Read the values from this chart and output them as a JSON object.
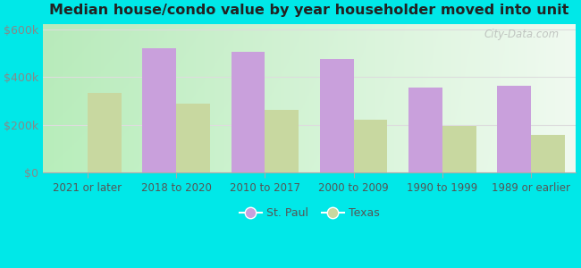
{
  "title": "Median house/condo value by year householder moved into unit",
  "categories": [
    "2021 or later",
    "2018 to 2020",
    "2010 to 2017",
    "2000 to 2009",
    "1990 to 1999",
    "1989 or earlier"
  ],
  "st_paul_values": [
    0,
    520000,
    505000,
    475000,
    355000,
    365000
  ],
  "texas_values": [
    335000,
    287000,
    263000,
    222000,
    197000,
    158000
  ],
  "st_paul_color": "#c9a0dc",
  "texas_color": "#c8d8a0",
  "outer_bg": "#00e8e8",
  "plot_bg_left": "#b8eebb",
  "plot_bg_right": "#f0faf0",
  "ylim": [
    0,
    620000
  ],
  "yticks": [
    0,
    200000,
    400000,
    600000
  ],
  "ytick_labels": [
    "$0",
    "$200k",
    "$400k",
    "$600k"
  ],
  "tick_color": "#888888",
  "grid_color": "#dddddd",
  "bar_width": 0.38,
  "legend_labels": [
    "St. Paul",
    "Texas"
  ],
  "watermark": "City-Data.com"
}
